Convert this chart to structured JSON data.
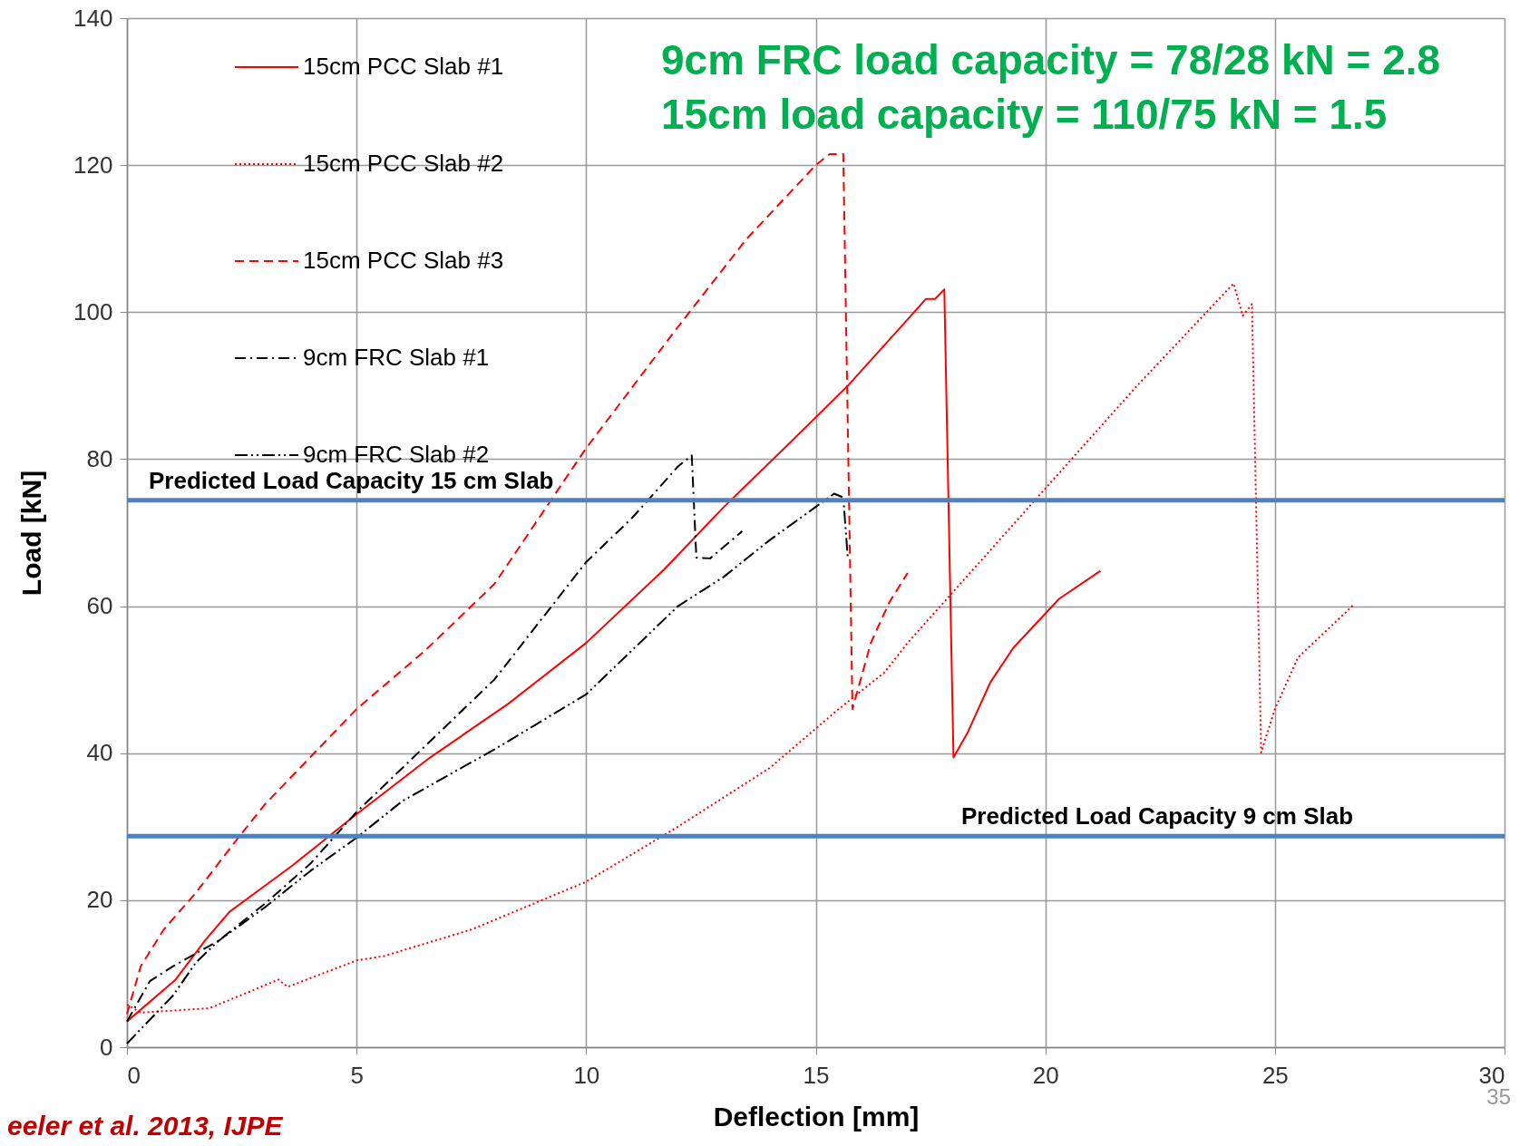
{
  "chart_data": {
    "type": "line",
    "xlabel": "Deflection [mm]",
    "ylabel": "Load [kN]",
    "xlim": [
      0,
      30
    ],
    "ylim": [
      0,
      140
    ],
    "xticks": [
      0,
      5,
      10,
      15,
      20,
      25,
      30
    ],
    "yticks": [
      0,
      20,
      40,
      60,
      80,
      100,
      120,
      140
    ],
    "grid": true,
    "legend": "top left",
    "annotations": [
      "9cm FRC load capacity = 78/28 kN = 2.8",
      "15cm load capacity = 110/75 kN = 1.5",
      "eeler et al. 2013, IJPE",
      "35"
    ],
    "ref_lines": [
      {
        "axis": "y",
        "value": 74.4,
        "label": "Predicted Load Capacity 15 cm Slab",
        "color": "#4f81bd"
      },
      {
        "axis": "y",
        "value": 28.7,
        "label": "Predicted Load Capacity 9 cm Slab",
        "color": "#4f81bd"
      }
    ],
    "series": [
      {
        "name": "15cm PCC Slab #1",
        "color": "#ff0000",
        "line_style": "solid",
        "x": [
          0,
          1.06,
          1.7,
          2.23,
          2.97,
          3.6,
          5,
          6.6,
          8.3,
          10,
          11.7,
          13,
          14.4,
          15.7,
          17,
          17.4,
          17.6,
          17.8,
          18,
          18.3,
          18.8,
          19.3,
          20.3,
          21.2
        ],
        "values": [
          3.5,
          9.2,
          14.5,
          18.4,
          21.8,
          24.7,
          31.7,
          39.4,
          46.7,
          55,
          65,
          73.5,
          82,
          90,
          99,
          101.8,
          101.8,
          103.1,
          39.4,
          42.7,
          49.6,
          54.3,
          61,
          64.8
        ]
      },
      {
        "name": "15cm PCC Slab #2",
        "color": "#ff0000",
        "line_style": "dotted",
        "x": [
          0,
          0.3,
          1.8,
          3.3,
          3.5,
          5,
          5.6,
          7.5,
          10,
          12,
          14,
          15.5,
          16.5,
          17,
          18,
          20,
          22,
          24.1,
          24.3,
          24.5,
          24.7,
          25,
          25.5,
          26.7
        ],
        "values": [
          5.8,
          4.7,
          5.3,
          9.2,
          8.2,
          11.8,
          12.4,
          16,
          22.5,
          30,
          38,
          46,
          51,
          55,
          62,
          76,
          90,
          103.9,
          99.5,
          101.1,
          40.1,
          46,
          53,
          60.1
        ]
      },
      {
        "name": "15cm PCC Slab #3",
        "color": "#ff0000",
        "line_style": "dashed",
        "x": [
          0,
          0.3,
          0.8,
          1.5,
          2.3,
          3,
          5,
          6.5,
          8,
          10,
          12,
          13.5,
          15,
          15.3,
          15.6,
          15.8,
          16.2,
          16.6,
          17
        ],
        "values": [
          4.5,
          11,
          16,
          21,
          27.5,
          33,
          46,
          54,
          63,
          81.5,
          98,
          110,
          120,
          121.5,
          121.5,
          46,
          55,
          60.5,
          64.5
        ]
      },
      {
        "name": "9cm FRC Slab #1",
        "color": "#000000",
        "line_style": "dashdot",
        "x": [
          0,
          0.5,
          1,
          2,
          3,
          4,
          5,
          6,
          7,
          8,
          9,
          10,
          11,
          12,
          12.3,
          12.4,
          12.7,
          13.4
        ],
        "values": [
          3.5,
          9,
          11,
          14.5,
          19.5,
          25,
          32,
          38,
          44,
          50,
          58,
          66,
          72,
          79,
          80.5,
          66.6,
          66.5,
          70.2
        ]
      },
      {
        "name": "9cm FRC Slab #2",
        "color": "#000000",
        "line_style": "dashdotdot",
        "x": [
          0,
          1,
          1.5,
          2,
          3,
          4,
          5,
          6,
          8,
          10,
          11,
          12,
          13,
          14,
          15,
          15.4,
          15.6,
          15.7
        ],
        "values": [
          0.5,
          7,
          11.5,
          14.5,
          19,
          24,
          28.5,
          33.5,
          40.5,
          48,
          54,
          60,
          64,
          69,
          73.5,
          75.3,
          74.8,
          66.4
        ]
      }
    ]
  }
}
